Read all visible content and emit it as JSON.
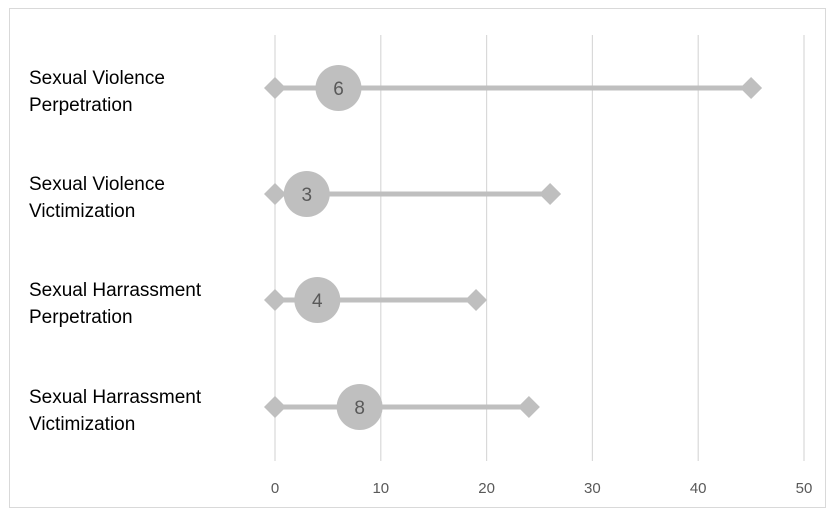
{
  "chart_data": {
    "type": "dot-range",
    "title": "",
    "xlabel": "",
    "ylabel": "",
    "xlim": [
      0,
      50
    ],
    "xticks": [
      0,
      10,
      20,
      30,
      40,
      50
    ],
    "grid": "vertical",
    "legend": "none",
    "colors": {
      "marker": "#bfbfbf",
      "grid": "#d9d9d9",
      "dot_text": "#595959",
      "tick_text": "#595959"
    },
    "categories": [
      {
        "line1": "Sexual Violence",
        "line2": "Perpetration",
        "min": 0,
        "max": 45,
        "value": 6
      },
      {
        "line1": "Sexual Violence",
        "line2": "Victimization",
        "min": 0,
        "max": 26,
        "value": 3
      },
      {
        "line1": "Sexual Harrassment",
        "line2": "Perpetration",
        "min": 0,
        "max": 19,
        "value": 4
      },
      {
        "line1": "Sexual Harrassment",
        "line2": "Victimization",
        "min": 0,
        "max": 24,
        "value": 8
      }
    ]
  }
}
